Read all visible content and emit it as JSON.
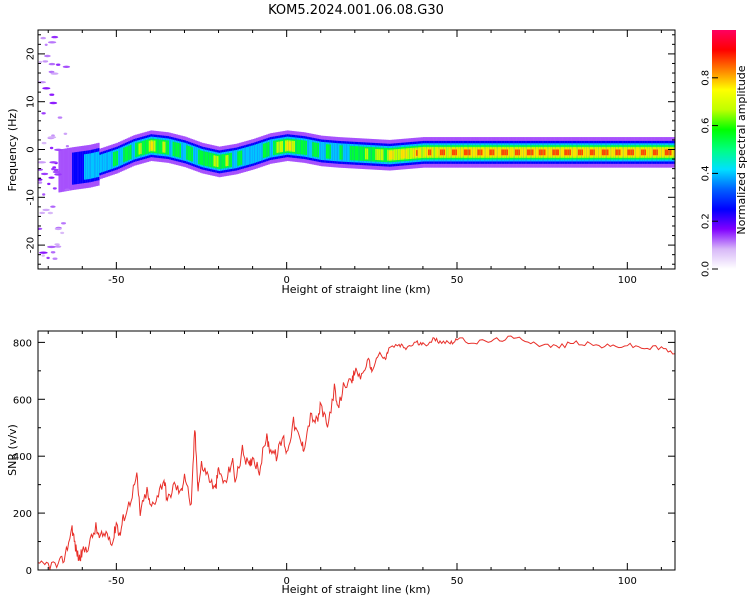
{
  "title": "KOM5.2024.001.06.08.G30",
  "chart_data": [
    {
      "type": "heatmap",
      "xlabel": "Height of straight line (km)",
      "ylabel": "Frequency (Hz)",
      "xlim": [
        -73,
        114
      ],
      "ylim": [
        -25,
        25
      ],
      "xticks": [
        -50,
        0,
        50,
        100
      ],
      "yticks": [
        -20,
        -10,
        0,
        10,
        20
      ],
      "colorbar": {
        "label": "Normalized spectral amplitude",
        "range": [
          0,
          1
        ],
        "ticks": [
          "0.0",
          "0.2",
          "0.4",
          "0.6",
          "0.8"
        ],
        "colormap": [
          "#ffffff",
          "#d8b8f8",
          "#8000ff",
          "#0000ff",
          "#0060ff",
          "#00e0ff",
          "#00ff80",
          "#00ff00",
          "#c0ff00",
          "#ffff00",
          "#ff8000",
          "#ff0000",
          "#ff0060"
        ]
      },
      "ridge": {
        "x": [
          -67,
          -63,
          -58,
          -55,
          -50,
          -45,
          -40,
          -35,
          -30,
          -25,
          -20,
          -15,
          -10,
          -5,
          0,
          5,
          10,
          15,
          20,
          25,
          30,
          35,
          40,
          50,
          60,
          70,
          80,
          90,
          100,
          114
        ],
        "y": [
          -4.5,
          -4,
          -3.5,
          -3,
          -1.8,
          -0.2,
          0.8,
          0.4,
          -0.5,
          -1.8,
          -2.6,
          -2,
          -1,
          0.2,
          0.8,
          0.4,
          -0.3,
          -0.6,
          -0.8,
          -1,
          -1.2,
          -0.9,
          -0.6,
          -0.6,
          -0.6,
          -0.6,
          -0.6,
          -0.6,
          -0.6,
          -0.6
        ],
        "amplitude": [
          0.15,
          0.25,
          0.5,
          0.45,
          0.55,
          0.6,
          0.75,
          0.6,
          0.55,
          0.6,
          0.7,
          0.55,
          0.5,
          0.6,
          0.8,
          0.6,
          0.55,
          0.5,
          0.6,
          0.7,
          0.75,
          0.8,
          0.85,
          0.9,
          0.9,
          0.9,
          0.92,
          0.9,
          0.9,
          0.9
        ]
      }
    },
    {
      "type": "line",
      "xlabel": "Height of straight line (km)",
      "ylabel": "SNR (v/v)",
      "xlim": [
        -73,
        114
      ],
      "ylim": [
        0,
        840
      ],
      "xticks": [
        -50,
        0,
        50,
        100
      ],
      "yticks": [
        0,
        200,
        400,
        600,
        800
      ],
      "color": "#e8302a",
      "series": [
        {
          "x": [
            -73,
            -70,
            -67,
            -65,
            -63,
            -62,
            -61,
            -60,
            -58,
            -56,
            -55,
            -53,
            -51,
            -50,
            -49,
            -48,
            -46,
            -44,
            -43,
            -41,
            -40,
            -38,
            -36,
            -35,
            -33,
            -31,
            -30,
            -28,
            -27,
            -26,
            -25,
            -23,
            -21,
            -20,
            -18,
            -16,
            -15,
            -13,
            -11,
            -10,
            -8,
            -6,
            -5,
            -3,
            -1,
            0,
            2,
            4,
            5,
            7,
            9,
            10,
            12,
            14,
            15,
            17,
            19,
            20,
            22,
            24,
            25,
            27,
            29,
            30,
            33,
            35,
            38,
            40,
            43,
            45,
            48,
            50,
            55,
            60,
            65,
            70,
            75,
            80,
            85,
            90,
            95,
            100,
            105,
            110,
            114
          ],
          "y": [
            10,
            20,
            15,
            50,
            150,
            80,
            40,
            60,
            90,
            150,
            110,
            130,
            100,
            170,
            120,
            180,
            240,
            330,
            200,
            280,
            220,
            260,
            320,
            240,
            300,
            270,
            340,
            220,
            500,
            290,
            370,
            330,
            280,
            350,
            300,
            390,
            310,
            420,
            360,
            400,
            350,
            470,
            430,
            400,
            470,
            410,
            520,
            450,
            430,
            540,
            520,
            580,
            500,
            640,
            560,
            660,
            650,
            700,
            680,
            740,
            700,
            760,
            740,
            780,
            790,
            780,
            800,
            790,
            810,
            805,
            800,
            810,
            800,
            805,
            815,
            810,
            790,
            785,
            800,
            790,
            785,
            790,
            780,
            780,
            760
          ]
        }
      ]
    }
  ]
}
